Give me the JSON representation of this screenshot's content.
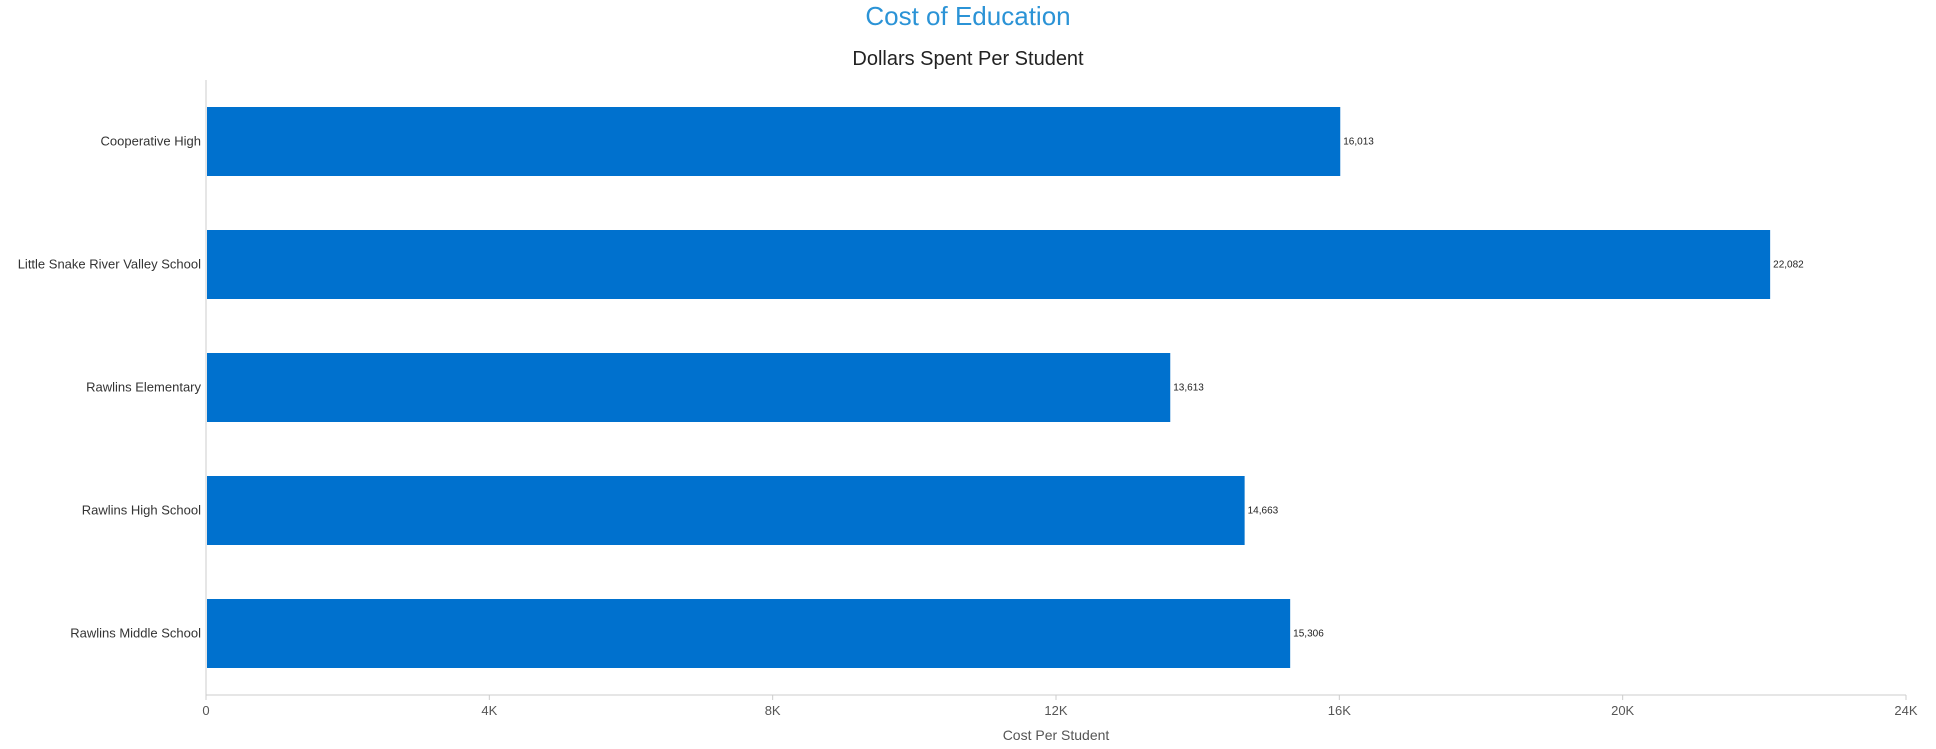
{
  "chart_data": {
    "type": "bar",
    "orientation": "horizontal",
    "title": "Cost of Education",
    "subtitle": "Dollars Spent Per Student",
    "categories": [
      "Cooperative High",
      "Little Snake River Valley School",
      "Rawlins Elementary",
      "Rawlins High School",
      "Rawlins Middle School"
    ],
    "values": [
      16013,
      22082,
      13613,
      14663,
      15306
    ],
    "value_labels": [
      "16,013",
      "22,082",
      "13,613",
      "14,663",
      "15,306"
    ],
    "xlabel": "Cost Per Student",
    "ylabel": "",
    "xlim": [
      0,
      24000
    ],
    "xticks": [
      0,
      4000,
      8000,
      12000,
      16000,
      20000,
      24000
    ],
    "xtick_labels": [
      "0",
      "4K",
      "8K",
      "12K",
      "16K",
      "20K",
      "24K"
    ],
    "grid": false,
    "legend": "none",
    "bar_color": "#0071ce",
    "title_color": "#2b93d6"
  }
}
